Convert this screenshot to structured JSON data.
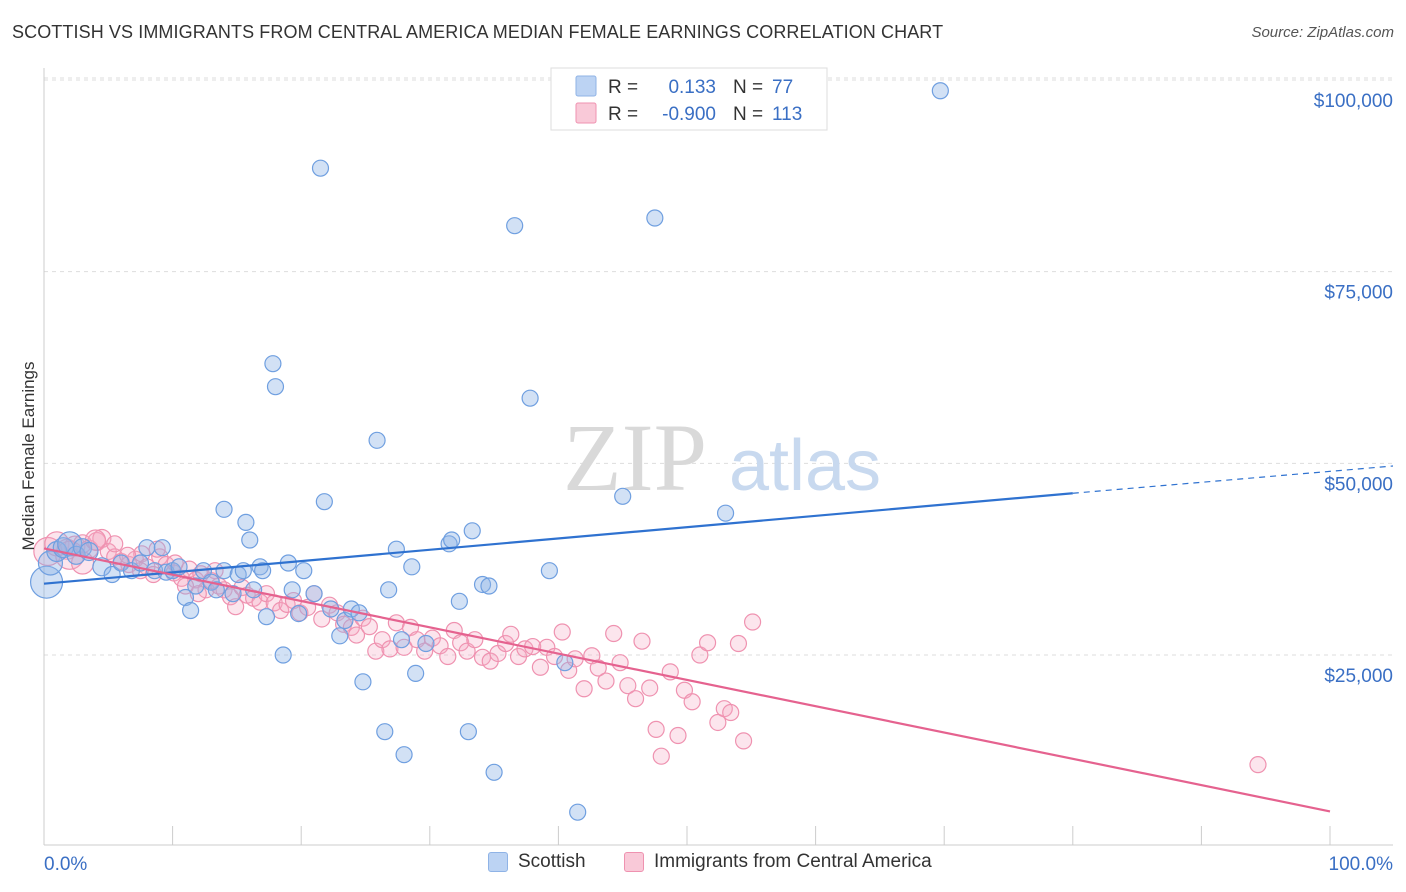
{
  "title": "SCOTTISH VS IMMIGRANTS FROM CENTRAL AMERICA MEDIAN FEMALE EARNINGS CORRELATION CHART",
  "source": "Source: ZipAtlas.com",
  "watermark": {
    "zip": "ZIP",
    "atlas": "atlas"
  },
  "colors": {
    "blue": "#6f9fe0",
    "blue_line": "#2f72d0",
    "pink": "#ef92b0",
    "pink_line": "#e5628f",
    "axis_text": "#3a6fc4",
    "grid": "#dddddd"
  },
  "legend_top": {
    "rows": [
      {
        "r_label": "R =",
        "r_value": "0.133",
        "n_label": "N =",
        "n_value": "77",
        "series": "blue"
      },
      {
        "r_label": "R =",
        "r_value": "-0.900",
        "n_label": "N =",
        "n_value": "113",
        "series": "pink"
      }
    ]
  },
  "legend_bottom": [
    {
      "label": "Scottish",
      "series": "blue"
    },
    {
      "label": "Immigrants from Central America",
      "series": "pink"
    }
  ],
  "chart_data": {
    "type": "scatter",
    "title": "SCOTTISH VS IMMIGRANTS FROM CENTRAL AMERICA MEDIAN FEMALE EARNINGS CORRELATION CHART",
    "xlabel": "",
    "ylabel": "Median Female Earnings",
    "xlim": [
      0,
      100
    ],
    "ylim": [
      0,
      105000
    ],
    "x_tick_labels": {
      "left": "0.0%",
      "right": "100.0%"
    },
    "y_ticks": [
      {
        "value": 25000,
        "label": "$25,000"
      },
      {
        "value": 50000,
        "label": "$50,000"
      },
      {
        "value": 75000,
        "label": "$75,000"
      },
      {
        "value": 100000,
        "label": "$100,000"
      }
    ],
    "grid": true,
    "legend_placement": "top-center",
    "series": [
      {
        "name": "Scottish",
        "color": "blue",
        "trend": {
          "x0": 0,
          "y0": 34300,
          "x1": 80,
          "y1": 46100,
          "dash_to_x": 100,
          "dash_to_y": 49000
        },
        "points": [
          [
            0.2,
            34500,
            16
          ],
          [
            0.5,
            37000,
            12
          ],
          [
            1.0,
            38500,
            10
          ],
          [
            1.5,
            39000,
            10
          ],
          [
            2.0,
            39500,
            12
          ],
          [
            2.5,
            38000,
            9
          ],
          [
            3.0,
            39000,
            9
          ],
          [
            3.5,
            38500,
            9
          ],
          [
            4.5,
            36500,
            9
          ],
          [
            5.3,
            35500,
            8
          ],
          [
            6.0,
            37000,
            8
          ],
          [
            6.8,
            36000,
            8
          ],
          [
            7.5,
            37000,
            8
          ],
          [
            8.0,
            39000,
            8
          ],
          [
            8.6,
            36000,
            8
          ],
          [
            9.2,
            39000,
            8
          ],
          [
            9.5,
            35800,
            8
          ],
          [
            10.0,
            36000,
            8
          ],
          [
            10.5,
            36500,
            8
          ],
          [
            11.0,
            32500,
            8
          ],
          [
            11.4,
            30800,
            8
          ],
          [
            11.8,
            34000,
            8
          ],
          [
            12.4,
            36000,
            8
          ],
          [
            13.0,
            34500,
            8
          ],
          [
            13.4,
            33500,
            8
          ],
          [
            14.0,
            36000,
            8
          ],
          [
            14.0,
            44000,
            8
          ],
          [
            14.7,
            33000,
            8
          ],
          [
            15.1,
            35500,
            8
          ],
          [
            15.5,
            36000,
            8
          ],
          [
            15.7,
            42300,
            8
          ],
          [
            16.0,
            40000,
            8
          ],
          [
            16.3,
            33500,
            8
          ],
          [
            16.8,
            36500,
            8
          ],
          [
            17.0,
            36000,
            8
          ],
          [
            17.3,
            30000,
            8
          ],
          [
            17.8,
            63000,
            8
          ],
          [
            18.0,
            60000,
            8
          ],
          [
            18.6,
            25000,
            8
          ],
          [
            19.0,
            37000,
            8
          ],
          [
            19.3,
            33500,
            8
          ],
          [
            19.8,
            30400,
            8
          ],
          [
            20.2,
            36000,
            8
          ],
          [
            21.0,
            33000,
            8
          ],
          [
            21.5,
            88500,
            8
          ],
          [
            21.8,
            45000,
            8
          ],
          [
            22.3,
            31000,
            8
          ],
          [
            23.0,
            27500,
            8
          ],
          [
            23.4,
            29500,
            8
          ],
          [
            23.9,
            31000,
            8
          ],
          [
            24.5,
            30500,
            8
          ],
          [
            24.8,
            21500,
            8
          ],
          [
            25.9,
            53000,
            8
          ],
          [
            26.5,
            15000,
            8
          ],
          [
            26.8,
            33500,
            8
          ],
          [
            27.4,
            38800,
            8
          ],
          [
            27.8,
            27000,
            8
          ],
          [
            28.0,
            12000,
            8
          ],
          [
            28.6,
            36500,
            8
          ],
          [
            28.9,
            22600,
            8
          ],
          [
            29.7,
            26500,
            8
          ],
          [
            31.5,
            39500,
            8
          ],
          [
            31.7,
            40000,
            8
          ],
          [
            32.3,
            32000,
            8
          ],
          [
            33.0,
            15000,
            8
          ],
          [
            33.3,
            41200,
            8
          ],
          [
            34.1,
            34200,
            8
          ],
          [
            34.6,
            34000,
            8
          ],
          [
            35.0,
            9700,
            8
          ],
          [
            36.6,
            81000,
            8
          ],
          [
            37.8,
            58500,
            8
          ],
          [
            39.3,
            36000,
            8
          ],
          [
            40.5,
            24000,
            8
          ],
          [
            41.5,
            4500,
            8
          ],
          [
            45.0,
            45700,
            8
          ],
          [
            47.5,
            82000,
            8
          ],
          [
            53.0,
            43500,
            8
          ],
          [
            69.7,
            98600,
            8
          ],
          [
            46.0,
            51500,
            0
          ]
        ]
      },
      {
        "name": "Immigrants from Central America",
        "color": "pink",
        "trend": {
          "x0": 0,
          "y0": 38900,
          "x1": 100,
          "y1": 4600
        },
        "points": [
          [
            0.3,
            38500,
            14
          ],
          [
            1.0,
            39500,
            12
          ],
          [
            1.8,
            38800,
            10
          ],
          [
            2.4,
            39200,
            10
          ],
          [
            3.0,
            39500,
            9
          ],
          [
            3.5,
            38800,
            9
          ],
          [
            4.1,
            39800,
            9
          ],
          [
            4.5,
            40200,
            9
          ],
          [
            5.0,
            38500,
            8
          ],
          [
            5.5,
            37800,
            8
          ],
          [
            6.0,
            37200,
            8
          ],
          [
            6.6,
            36800,
            8
          ],
          [
            7.1,
            37500,
            8
          ],
          [
            7.6,
            38200,
            8
          ],
          [
            8.0,
            36500,
            8
          ],
          [
            8.5,
            35500,
            8
          ],
          [
            9.0,
            37800,
            8
          ],
          [
            9.5,
            36800,
            8
          ],
          [
            10.1,
            35700,
            8
          ],
          [
            10.7,
            35000,
            8
          ],
          [
            11.3,
            36200,
            8
          ],
          [
            11.8,
            34800,
            8
          ],
          [
            12.2,
            35600,
            8
          ],
          [
            12.6,
            33500,
            8
          ],
          [
            13.0,
            34700,
            8
          ],
          [
            13.6,
            34000,
            8
          ],
          [
            14.0,
            33500,
            8
          ],
          [
            14.5,
            32600,
            8
          ],
          [
            14.9,
            31300,
            8
          ],
          [
            15.4,
            33800,
            8
          ],
          [
            15.8,
            32800,
            8
          ],
          [
            16.3,
            32400,
            8
          ],
          [
            16.8,
            31900,
            8
          ],
          [
            17.3,
            33000,
            8
          ],
          [
            17.9,
            31800,
            8
          ],
          [
            18.4,
            30800,
            8
          ],
          [
            18.9,
            31600,
            8
          ],
          [
            19.4,
            32100,
            8
          ],
          [
            19.9,
            30500,
            8
          ],
          [
            20.5,
            31200,
            8
          ],
          [
            21.0,
            33000,
            8
          ],
          [
            21.6,
            29700,
            8
          ],
          [
            22.2,
            31500,
            8
          ],
          [
            22.8,
            30500,
            8
          ],
          [
            23.3,
            29000,
            8
          ],
          [
            23.9,
            28600,
            8
          ],
          [
            24.3,
            27600,
            8
          ],
          [
            24.8,
            29800,
            8
          ],
          [
            25.3,
            28700,
            8
          ],
          [
            25.8,
            25500,
            8
          ],
          [
            26.3,
            27000,
            8
          ],
          [
            26.9,
            25800,
            8
          ],
          [
            27.4,
            29200,
            8
          ],
          [
            28.0,
            26000,
            8
          ],
          [
            28.5,
            28600,
            8
          ],
          [
            29.0,
            27000,
            8
          ],
          [
            29.6,
            25500,
            8
          ],
          [
            30.2,
            27200,
            8
          ],
          [
            30.8,
            26200,
            8
          ],
          [
            31.4,
            24800,
            8
          ],
          [
            31.9,
            28200,
            8
          ],
          [
            32.4,
            26600,
            8
          ],
          [
            32.9,
            25500,
            8
          ],
          [
            33.5,
            27000,
            8
          ],
          [
            34.1,
            24700,
            8
          ],
          [
            34.7,
            24200,
            8
          ],
          [
            35.3,
            25200,
            8
          ],
          [
            35.9,
            26500,
            8
          ],
          [
            36.3,
            27700,
            8
          ],
          [
            36.9,
            24800,
            8
          ],
          [
            37.4,
            25800,
            8
          ],
          [
            38.0,
            26100,
            8
          ],
          [
            38.6,
            23400,
            8
          ],
          [
            39.1,
            26000,
            8
          ],
          [
            39.7,
            24800,
            8
          ],
          [
            40.3,
            28000,
            8
          ],
          [
            40.8,
            23000,
            8
          ],
          [
            41.3,
            24500,
            8
          ],
          [
            42.0,
            20600,
            8
          ],
          [
            42.6,
            24900,
            8
          ],
          [
            43.1,
            23300,
            8
          ],
          [
            43.7,
            21600,
            8
          ],
          [
            44.3,
            27800,
            8
          ],
          [
            44.8,
            24000,
            8
          ],
          [
            45.4,
            21000,
            8
          ],
          [
            46.0,
            19300,
            8
          ],
          [
            46.5,
            26800,
            8
          ],
          [
            47.1,
            20700,
            8
          ],
          [
            47.6,
            15300,
            8
          ],
          [
            48.0,
            11800,
            8
          ],
          [
            48.7,
            22800,
            8
          ],
          [
            49.3,
            14500,
            8
          ],
          [
            49.8,
            20400,
            8
          ],
          [
            50.4,
            18900,
            8
          ],
          [
            51.0,
            25000,
            8
          ],
          [
            51.6,
            26600,
            8
          ],
          [
            52.4,
            16200,
            8
          ],
          [
            52.9,
            18000,
            8
          ],
          [
            53.4,
            17500,
            8
          ],
          [
            54.0,
            26500,
            8
          ],
          [
            54.4,
            13800,
            8
          ],
          [
            55.1,
            29300,
            8
          ],
          [
            60.0,
            9000,
            0
          ],
          [
            63.0,
            7000,
            0
          ],
          [
            94.4,
            10700,
            8
          ],
          [
            2.0,
            38000,
            14
          ],
          [
            3.0,
            37000,
            11
          ],
          [
            4.0,
            40000,
            10
          ],
          [
            5.5,
            39500,
            8
          ],
          [
            6.5,
            38000,
            8
          ],
          [
            7.5,
            36000,
            8
          ],
          [
            8.8,
            38800,
            8
          ],
          [
            10.2,
            37000,
            8
          ],
          [
            11.0,
            34000,
            8
          ],
          [
            12.0,
            33000,
            8
          ],
          [
            13.3,
            36000,
            8
          ]
        ]
      }
    ]
  }
}
